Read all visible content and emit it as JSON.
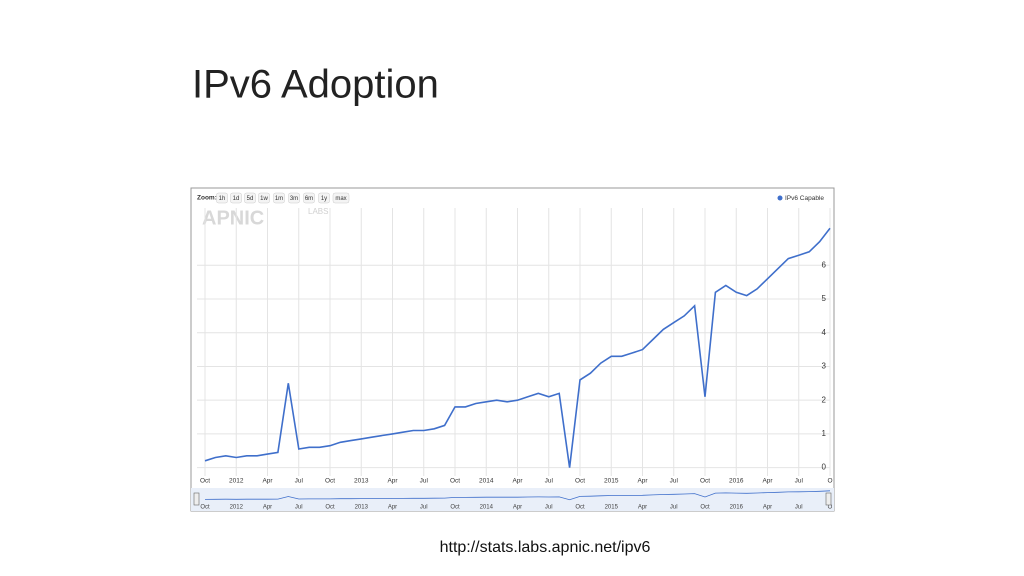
{
  "slide": {
    "title": "IPv6 Adoption",
    "source": "http://stats.labs.apnic.net/ipv6"
  },
  "toolbar": {
    "label": "Zoom:",
    "buttons": [
      "1h",
      "1d",
      "5d",
      "1w",
      "1m",
      "3m",
      "6m",
      "1y",
      "max"
    ]
  },
  "logo": {
    "name": "APNIC",
    "sub": "LABS"
  },
  "chart_data": {
    "type": "line",
    "categories": [
      "Oct",
      null,
      null,
      "2012",
      null,
      null,
      "Apr",
      null,
      null,
      "Jul",
      null,
      null,
      "Oct",
      null,
      null,
      "2013",
      null,
      null,
      "Apr",
      null,
      null,
      "Jul",
      null,
      null,
      "Oct",
      null,
      null,
      "2014",
      null,
      null,
      "Apr",
      null,
      null,
      "Jul",
      null,
      null,
      "Oct",
      null,
      null,
      "2015",
      null,
      null,
      "Apr",
      null,
      null,
      "Jul",
      null,
      null,
      "Oct",
      null,
      null,
      "2016",
      null,
      null,
      "Apr",
      null,
      null,
      "Jul",
      null,
      null,
      "O"
    ],
    "series": [
      {
        "name": "IPv6 Capable",
        "color": "#3f6fcb",
        "values": [
          0.2,
          0.3,
          0.35,
          0.3,
          0.35,
          0.35,
          0.4,
          0.45,
          2.5,
          0.55,
          0.6,
          0.6,
          0.65,
          0.75,
          0.8,
          0.85,
          0.9,
          0.95,
          1.0,
          1.05,
          1.1,
          1.1,
          1.15,
          1.25,
          1.8,
          1.8,
          1.9,
          1.95,
          2.0,
          1.95,
          2.0,
          2.1,
          2.2,
          2.1,
          2.2,
          0.0,
          2.6,
          2.8,
          3.1,
          3.3,
          3.3,
          3.4,
          3.5,
          3.8,
          4.1,
          4.3,
          4.5,
          4.8,
          2.1,
          5.2,
          5.4,
          5.2,
          5.1,
          5.3,
          5.6,
          5.9,
          6.2,
          6.3,
          6.4,
          6.7,
          7.1
        ]
      }
    ],
    "ylim": [
      -0.25,
      7.7
    ],
    "yticks": [
      0,
      1,
      2,
      3,
      4,
      5,
      6
    ],
    "grid": true,
    "legend": "top-right"
  }
}
